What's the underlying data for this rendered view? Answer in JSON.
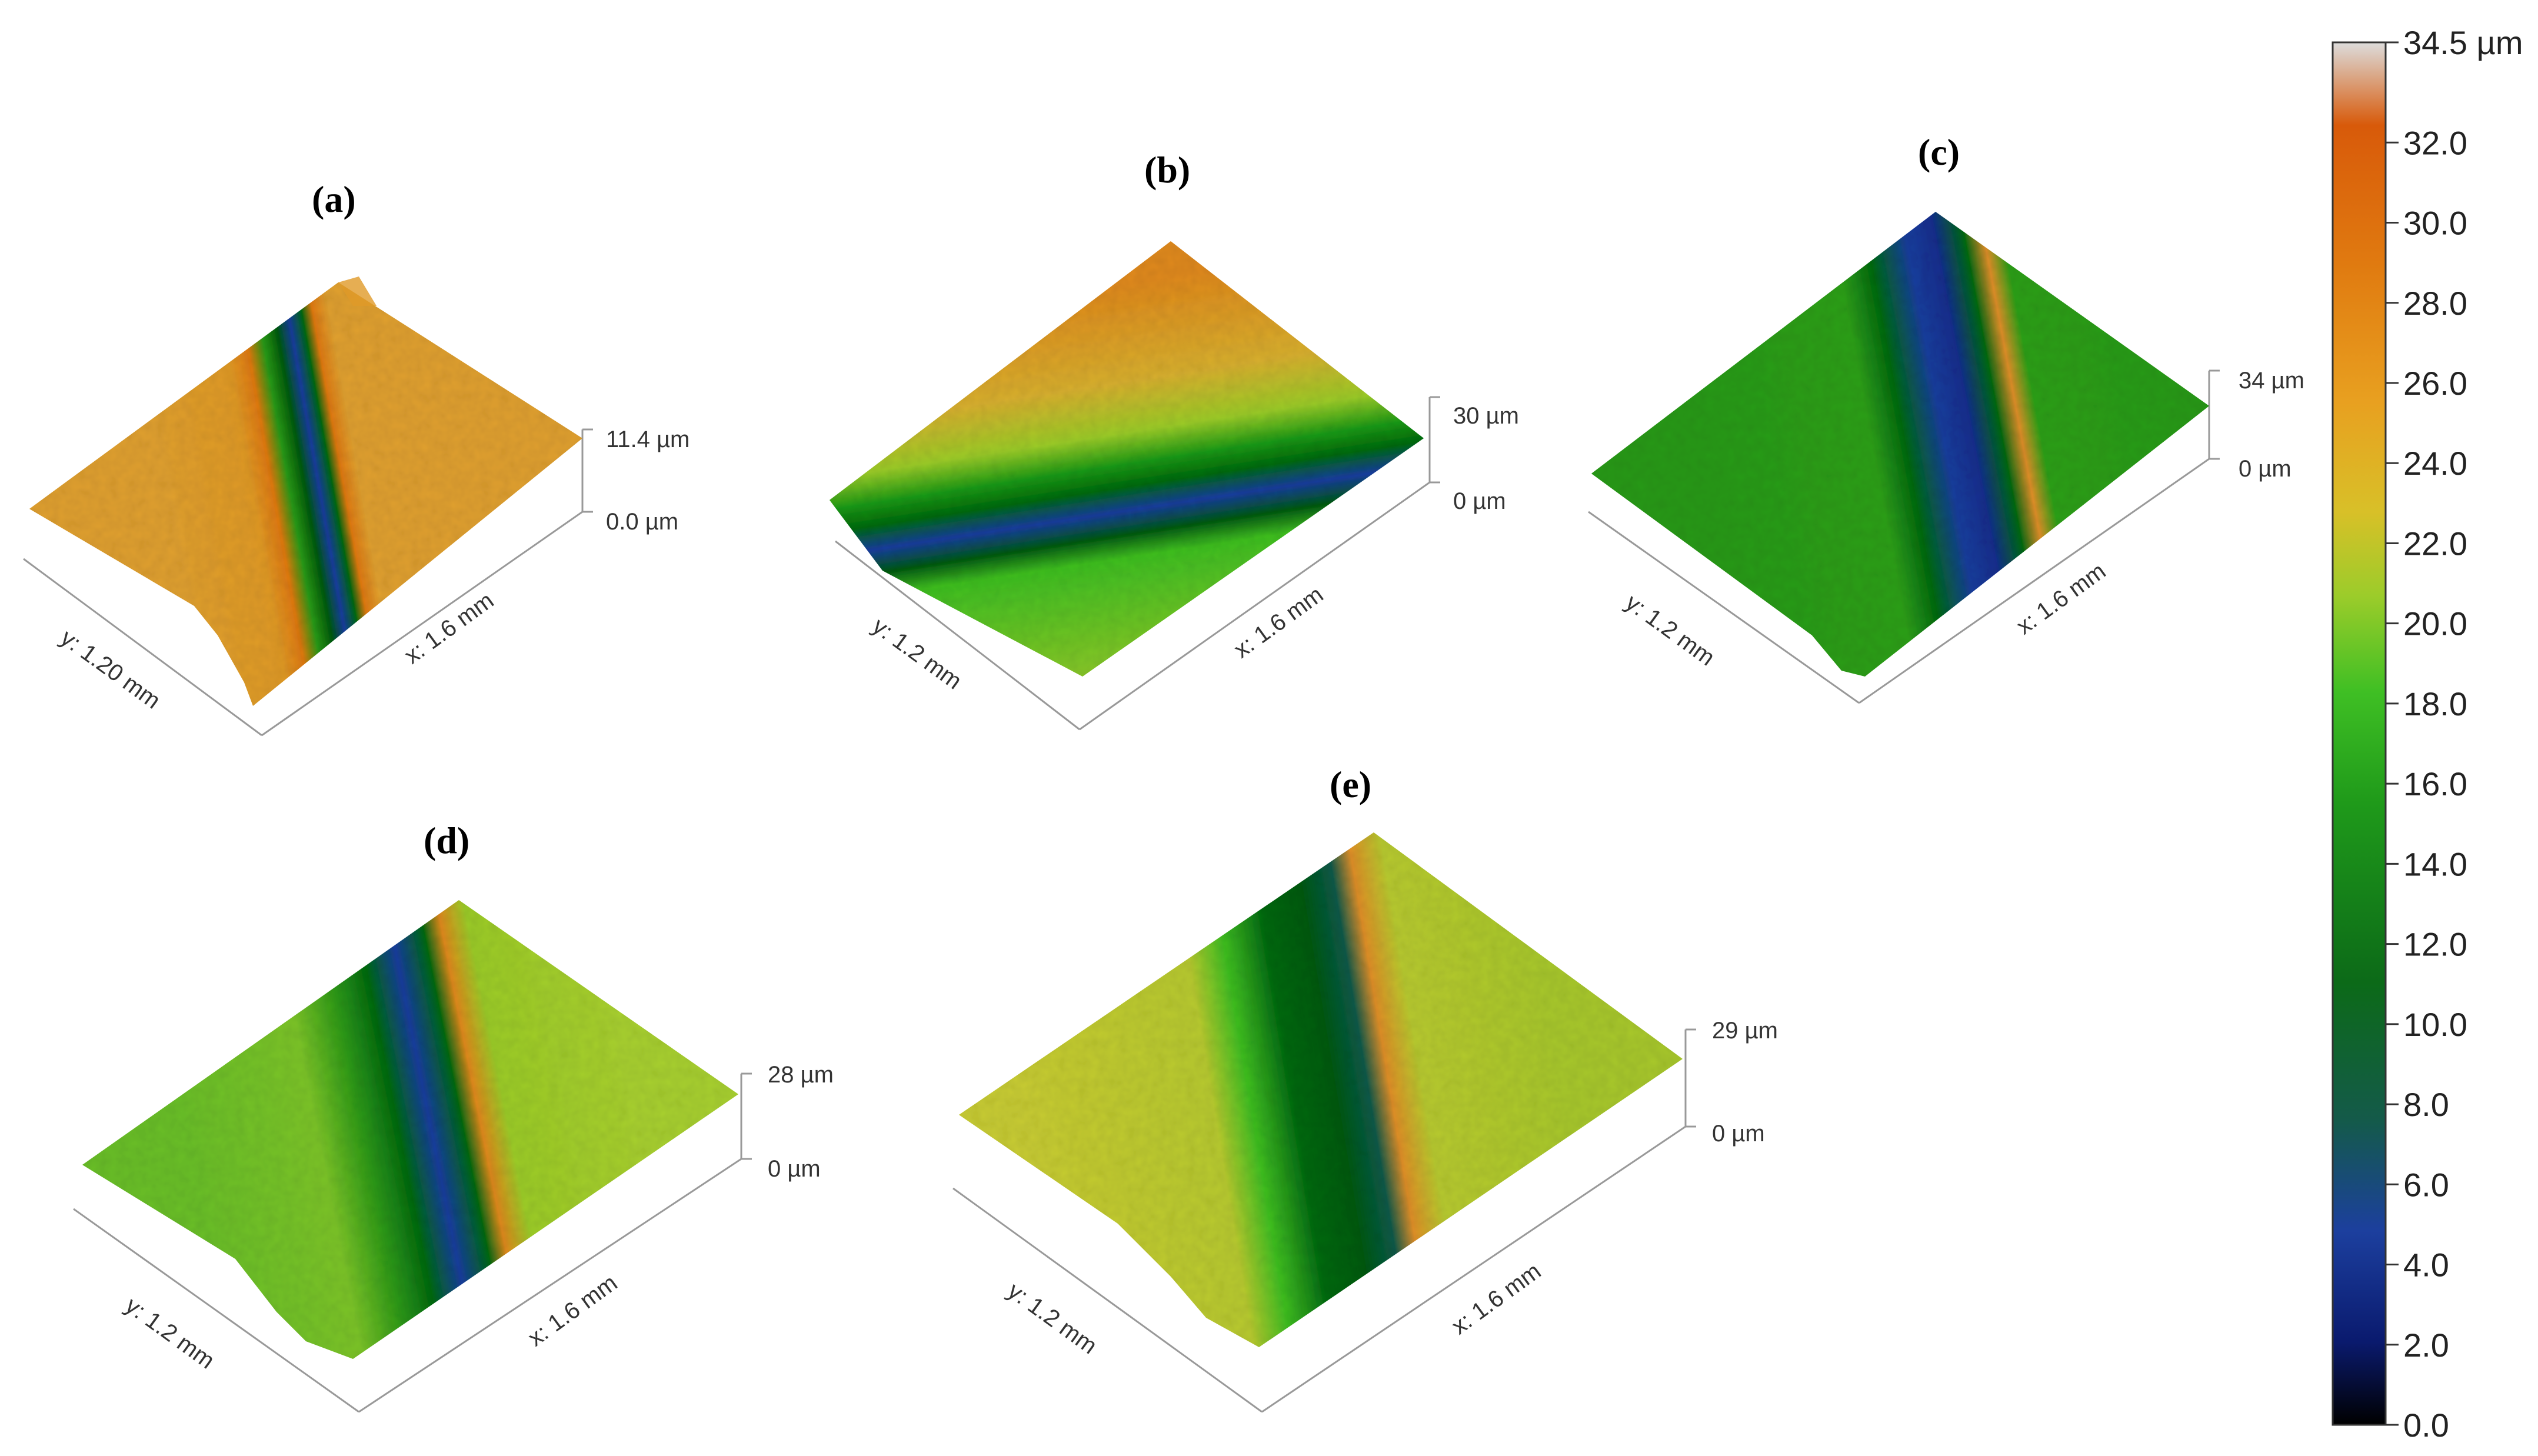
{
  "panels": [
    {
      "label": "(a)",
      "y_axis": "y: 1.20 mm",
      "x_axis": "x: 1.6 mm",
      "z_top": "11.4 µm",
      "z_bottom": "0.0 µm"
    },
    {
      "label": "(b)",
      "y_axis": "y: 1.2 mm",
      "x_axis": "x: 1.6 mm",
      "z_top": "30 µm",
      "z_bottom": "0 µm"
    },
    {
      "label": "(c)",
      "y_axis": "y: 1.2 mm",
      "x_axis": "x: 1.6 mm",
      "z_top": "34 µm",
      "z_bottom": "0 µm"
    },
    {
      "label": "(d)",
      "y_axis": "y: 1.2 mm",
      "x_axis": "x: 1.6 mm",
      "z_top": "28 µm",
      "z_bottom": "0 µm"
    },
    {
      "label": "(e)",
      "y_axis": "y: 1.2 mm",
      "x_axis": "x: 1.6 mm",
      "z_top": "29 µm",
      "z_bottom": "0 µm"
    }
  ],
  "colorbar": {
    "ticks": [
      "34.5 µm",
      "32.0",
      "30.0",
      "28.0",
      "26.0",
      "24.0",
      "22.0",
      "20.0",
      "18.0",
      "16.0",
      "14.0",
      "12.0",
      "10.0",
      "8.0",
      "6.0",
      "4.0",
      "2.0",
      "0.0"
    ],
    "tick_values": [
      34.5,
      32,
      30,
      28,
      26,
      24,
      22,
      20,
      18,
      16,
      14,
      12,
      10,
      8,
      6,
      4,
      2,
      0
    ],
    "min": 0,
    "max": 34.5,
    "colors": [
      "#000000",
      "#0a1a6e",
      "#1c3f9e",
      "#145a4a",
      "#0c6a18",
      "#1f9a1a",
      "#3fbf24",
      "#9ccc2a",
      "#d8c028",
      "#e8a020",
      "#e07a10",
      "#d85a0a",
      "#dcdcdc"
    ]
  }
}
